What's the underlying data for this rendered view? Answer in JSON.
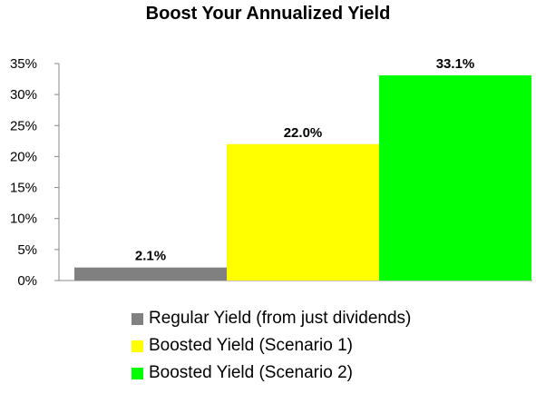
{
  "chart_data": {
    "type": "bar",
    "title": "Boost Your Annualized Yield",
    "categories": [
      "Regular Yield (from just dividends)",
      "Boosted Yield (Scenario 1)",
      "Boosted Yield (Scenario 2)"
    ],
    "series": [
      {
        "name": "Regular Yield (from just dividends)",
        "color": "#808080",
        "value": 2.1,
        "label": "2.1%"
      },
      {
        "name": "Boosted Yield (Scenario 1)",
        "color": "#ffff00",
        "value": 22.0,
        "label": "22.0%"
      },
      {
        "name": "Boosted Yield (Scenario 2)",
        "color": "#00ff00",
        "value": 33.1,
        "label": "33.1%"
      }
    ],
    "yticks": [
      "0%",
      "5%",
      "10%",
      "15%",
      "20%",
      "25%",
      "30%",
      "35%"
    ],
    "ytick_values": [
      0,
      5,
      10,
      15,
      20,
      25,
      30,
      35
    ],
    "ylim": [
      0,
      35
    ],
    "xlabel": "",
    "ylabel": "",
    "grid": false,
    "legend_position": "bottom"
  }
}
